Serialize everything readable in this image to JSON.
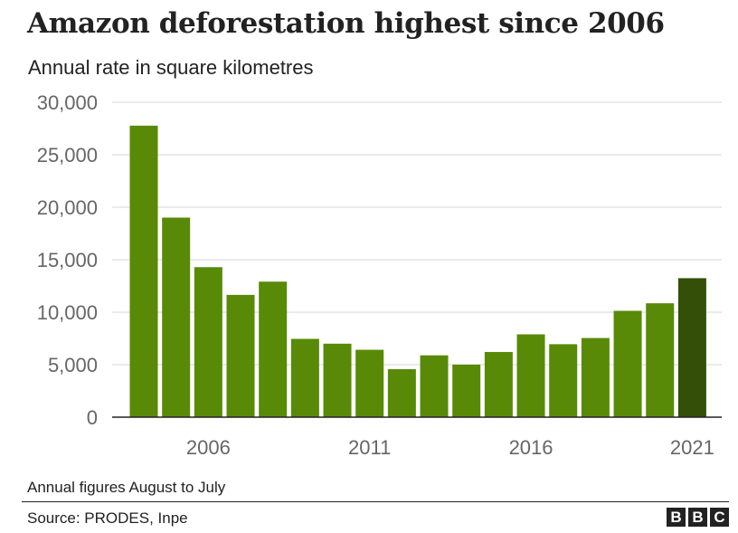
{
  "header": {
    "title": "Amazon deforestation highest since 2006",
    "subtitle": "Annual rate in square kilometres"
  },
  "footer": {
    "note": "Annual figures August to July",
    "source": "Source: PRODES, Inpe",
    "logo_letters": [
      "B",
      "B",
      "C"
    ]
  },
  "colors": {
    "bar": "#588a07",
    "highlight": "#344f07",
    "grid": "#d6d6d6",
    "axis": "#222222",
    "tick_text": "#666666"
  },
  "chart_data": {
    "type": "bar",
    "title": "Amazon deforestation highest since 2006",
    "subtitle": "Annual rate in square kilometres",
    "xlabel": "",
    "ylabel": "",
    "categories": [
      "2004",
      "2005",
      "2006",
      "2007",
      "2008",
      "2009",
      "2010",
      "2011",
      "2012",
      "2013",
      "2014",
      "2015",
      "2016",
      "2017",
      "2018",
      "2019",
      "2020",
      "2021"
    ],
    "x_tick_labels": [
      "2006",
      "2011",
      "2016",
      "2021"
    ],
    "values": [
      27770,
      19010,
      14290,
      11650,
      12910,
      7460,
      7000,
      6420,
      4570,
      5890,
      5010,
      6210,
      7890,
      6950,
      7540,
      10130,
      10850,
      13240
    ],
    "highlighted_category": "2021",
    "y_tick_labels": [
      "0",
      "5,000",
      "10,000",
      "15,000",
      "20,000",
      "25,000",
      "30,000"
    ],
    "ylim": [
      0,
      30000
    ],
    "grid": true,
    "legend": "none"
  }
}
